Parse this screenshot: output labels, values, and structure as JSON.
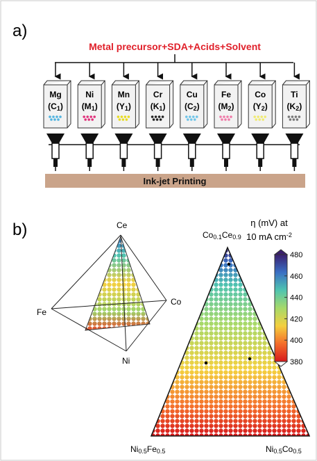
{
  "panel_a": {
    "label": "a)",
    "title": "Metal precursor+SDA+Acids+Solvent",
    "cartridges": [
      {
        "element": "Mg",
        "code": [
          "(C",
          "1",
          ")"
        ],
        "ink": "#4fb3e0"
      },
      {
        "element": "Ni",
        "code": [
          "(M",
          "1",
          ")"
        ],
        "ink": "#e0307a"
      },
      {
        "element": "Mn",
        "code": [
          "(Y",
          "1",
          ")"
        ],
        "ink": "#e8dc20"
      },
      {
        "element": "Cr",
        "code": [
          "(K",
          "1",
          ")"
        ],
        "ink": "#222222"
      },
      {
        "element": "Cu",
        "code": [
          "(C",
          "2",
          ")"
        ],
        "ink": "#6fc4e8"
      },
      {
        "element": "Fe",
        "code": [
          "(M",
          "2",
          ")"
        ],
        "ink": "#f07aa8"
      },
      {
        "element": "Co",
        "code": [
          "(Y",
          "2",
          ")"
        ],
        "ink": "#f0ea70"
      },
      {
        "element": "Ti",
        "code": [
          "(K",
          "2",
          ")"
        ],
        "ink": "#777777"
      }
    ],
    "printer": "Ink-jet Printing"
  },
  "panel_b": {
    "label": "b)",
    "tetrahedron": {
      "top": "Ce",
      "left": "Fe",
      "right": "Co",
      "bottom": "Ni"
    },
    "ternary": {
      "top": [
        "Co",
        "0.1",
        "Ce",
        "0.9"
      ],
      "left": [
        "Ni",
        "0.5",
        "Fe",
        "0.5"
      ],
      "right": [
        "Ni",
        "0.5",
        "Co",
        "0.5"
      ]
    },
    "colorbar": {
      "title_line1": "η (mV) at",
      "title_line2": [
        "10 mA cm",
        "-2"
      ],
      "range": [
        380,
        480
      ],
      "ticks": [
        380,
        400,
        420,
        440,
        460,
        480
      ],
      "colors": [
        "#d7191c",
        "#f46d2a",
        "#f4d03f",
        "#a6d96a",
        "#4fc4b0",
        "#3a6fc4",
        "#3b1f6e"
      ]
    }
  }
}
